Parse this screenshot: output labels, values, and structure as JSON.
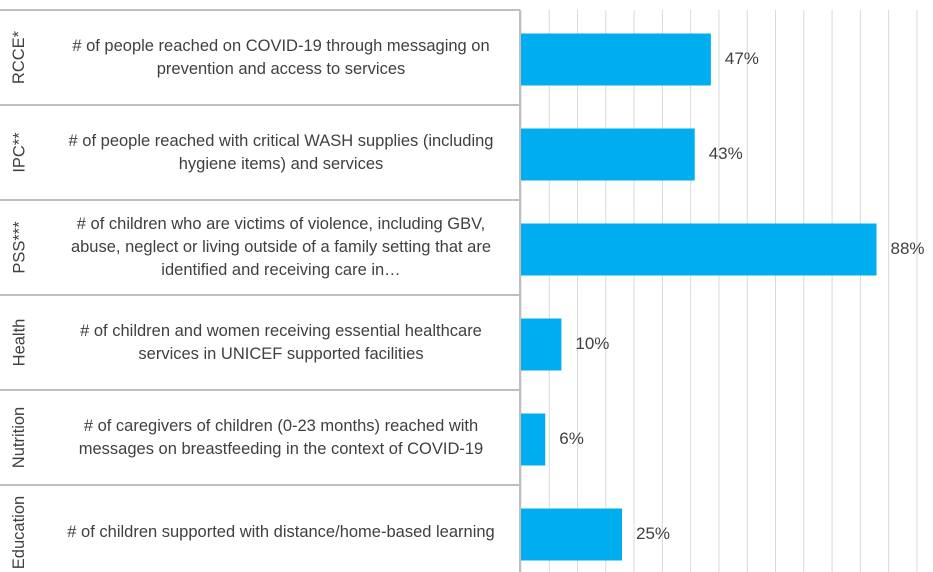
{
  "chart_data": {
    "type": "bar",
    "orientation": "horizontal",
    "groups": [
      "RCCE*",
      "IPC**",
      "PSS***",
      "Health",
      "Nutrition",
      "Education"
    ],
    "categories": [
      "# of people reached on COVID-19 through messaging on prevention and access to services",
      "# of people reached with critical WASH supplies (including hygiene items) and services",
      "# of children who are victims of violence, including GBV, abuse, neglect or living outside of a family setting that are identified and receiving care in…",
      "# of children and women receiving essential healthcare services in UNICEF supported facilities",
      "# of caregivers of children (0-23 months) reached with messages on breastfeeding in the context of COVID-19",
      "# of children supported with distance/home-based learning"
    ],
    "values": [
      47,
      43,
      88,
      10,
      6,
      25
    ],
    "value_labels": [
      "47%",
      "43%",
      "88%",
      "10%",
      "6%",
      "25%"
    ],
    "color": "#00aeef",
    "xlim": [
      0,
      100
    ],
    "xticks": [
      0,
      7,
      14,
      21,
      28,
      35,
      42,
      49,
      56,
      63,
      70,
      77,
      84,
      91,
      98
    ],
    "grid": true
  }
}
